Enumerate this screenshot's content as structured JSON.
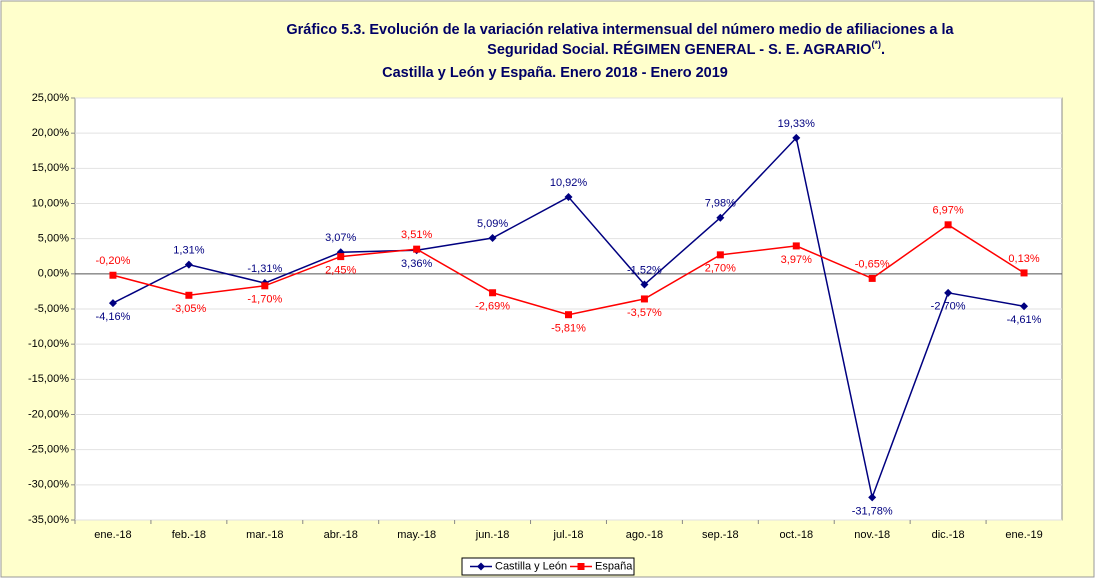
{
  "chart_data": {
    "type": "line",
    "title_lines": [
      "Gráfico 5.3. Evolución de la variación relativa intermensual del número medio de afiliaciones a la",
      "Seguridad Social. RÉGIMEN GENERAL - S. E. AGRARIO",
      "Castilla y León y España. Enero 2018 - Enero 2019"
    ],
    "title_note": "(*)",
    "title_note_end": ".",
    "categories": [
      "ene.-18",
      "feb.-18",
      "mar.-18",
      "abr.-18",
      "may.-18",
      "jun.-18",
      "jul.-18",
      "ago.-18",
      "sep.-18",
      "oct.-18",
      "nov.-18",
      "dic.-18",
      "ene.-19"
    ],
    "series": [
      {
        "name": "Castilla y León",
        "color": "#000080",
        "marker": "diamond",
        "values": [
          -4.16,
          1.31,
          -1.31,
          3.07,
          3.36,
          5.09,
          10.92,
          -1.52,
          7.98,
          19.33,
          -31.78,
          -2.7,
          -4.61
        ],
        "value_labels": [
          "-4,16%",
          "1,31%",
          "-1,31%",
          "3,07%",
          "3,36%",
          "5,09%",
          "10,92%",
          "-1,52%",
          "7,98%",
          "19,33%",
          "-31,78%",
          "-2,70%",
          "-4,61%"
        ]
      },
      {
        "name": "España",
        "color": "#ff0000",
        "marker": "square",
        "values": [
          -0.2,
          -3.05,
          -1.7,
          2.45,
          3.51,
          -2.69,
          -5.81,
          -3.57,
          2.7,
          3.97,
          -0.65,
          6.97,
          0.13
        ],
        "value_labels": [
          "-0,20%",
          "-3,05%",
          "-1,70%",
          "2,45%",
          "3,51%",
          "-2,69%",
          "-5,81%",
          "-3,57%",
          "2,70%",
          "3,97%",
          "-0,65%",
          "6,97%",
          "0,13%"
        ]
      }
    ],
    "ylim": [
      -35,
      25
    ],
    "yticks": [
      {
        "value": -35,
        "label": "-35,00%"
      },
      {
        "value": -30,
        "label": "-30,00%"
      },
      {
        "value": -25,
        "label": "-25,00%"
      },
      {
        "value": -20,
        "label": "-20,00%"
      },
      {
        "value": -15,
        "label": "-15,00%"
      },
      {
        "value": -10,
        "label": "-10,00%"
      },
      {
        "value": -5,
        "label": "-5,00%"
      },
      {
        "value": 0,
        "label": "0,00%"
      },
      {
        "value": 5,
        "label": "5,00%"
      },
      {
        "value": 10,
        "label": "10,00%"
      },
      {
        "value": 15,
        "label": "15,00%"
      },
      {
        "value": 20,
        "label": "20,00%"
      },
      {
        "value": 25,
        "label": "25,00%"
      }
    ],
    "grid": true,
    "legend": "bottom"
  }
}
